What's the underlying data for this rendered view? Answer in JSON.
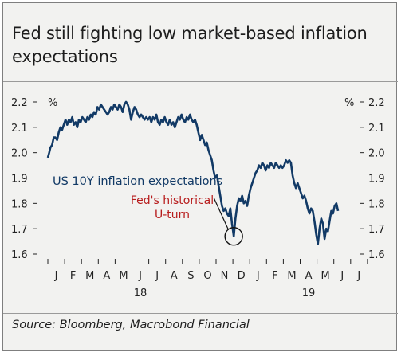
{
  "title": "Fed still fighting low market-based inflation expectations",
  "source": "Source: Bloomberg, Macrobond Financial",
  "chart_data": {
    "type": "line",
    "unit_left": "%",
    "unit_right": "%",
    "ylim": [
      1.6,
      2.2
    ],
    "yticks": [
      "2.2",
      "2.1",
      "2.0",
      "1.9",
      "1.8",
      "1.7",
      "1.6"
    ],
    "months": [
      "J",
      "F",
      "M",
      "A",
      "M",
      "J",
      "J",
      "A",
      "S",
      "O",
      "N",
      "D",
      "J",
      "F",
      "M",
      "A",
      "M",
      "J",
      "J"
    ],
    "years": [
      {
        "label": "18",
        "month_index": 5.5
      },
      {
        "label": "19",
        "month_index": 15.5
      }
    ],
    "series": [
      {
        "name": "US 10Y inflation expectations",
        "color": "#123a66",
        "points": [
          [
            0.0,
            1.98
          ],
          [
            0.08,
            2.0
          ],
          [
            0.15,
            2.02
          ],
          [
            0.25,
            2.03
          ],
          [
            0.35,
            2.06
          ],
          [
            0.45,
            2.06
          ],
          [
            0.55,
            2.05
          ],
          [
            0.65,
            2.08
          ],
          [
            0.75,
            2.1
          ],
          [
            0.85,
            2.09
          ],
          [
            0.95,
            2.11
          ],
          [
            1.05,
            2.13
          ],
          [
            1.15,
            2.11
          ],
          [
            1.25,
            2.13
          ],
          [
            1.35,
            2.12
          ],
          [
            1.45,
            2.14
          ],
          [
            1.55,
            2.11
          ],
          [
            1.65,
            2.12
          ],
          [
            1.75,
            2.1
          ],
          [
            1.85,
            2.13
          ],
          [
            1.95,
            2.12
          ],
          [
            2.05,
            2.14
          ],
          [
            2.15,
            2.13
          ],
          [
            2.25,
            2.12
          ],
          [
            2.35,
            2.14
          ],
          [
            2.45,
            2.13
          ],
          [
            2.55,
            2.15
          ],
          [
            2.65,
            2.14
          ],
          [
            2.75,
            2.16
          ],
          [
            2.85,
            2.15
          ],
          [
            2.95,
            2.18
          ],
          [
            3.05,
            2.17
          ],
          [
            3.15,
            2.19
          ],
          [
            3.25,
            2.18
          ],
          [
            3.35,
            2.17
          ],
          [
            3.45,
            2.16
          ],
          [
            3.55,
            2.15
          ],
          [
            3.65,
            2.16
          ],
          [
            3.75,
            2.18
          ],
          [
            3.85,
            2.17
          ],
          [
            3.95,
            2.19
          ],
          [
            4.05,
            2.18
          ],
          [
            4.15,
            2.17
          ],
          [
            4.25,
            2.19
          ],
          [
            4.35,
            2.18
          ],
          [
            4.45,
            2.16
          ],
          [
            4.55,
            2.19
          ],
          [
            4.65,
            2.2
          ],
          [
            4.75,
            2.19
          ],
          [
            4.85,
            2.17
          ],
          [
            4.95,
            2.13
          ],
          [
            5.05,
            2.16
          ],
          [
            5.15,
            2.18
          ],
          [
            5.25,
            2.17
          ],
          [
            5.35,
            2.15
          ],
          [
            5.45,
            2.14
          ],
          [
            5.55,
            2.15
          ],
          [
            5.65,
            2.14
          ],
          [
            5.75,
            2.13
          ],
          [
            5.85,
            2.14
          ],
          [
            5.95,
            2.13
          ],
          [
            6.05,
            2.14
          ],
          [
            6.15,
            2.12
          ],
          [
            6.25,
            2.14
          ],
          [
            6.35,
            2.13
          ],
          [
            6.45,
            2.15
          ],
          [
            6.55,
            2.12
          ],
          [
            6.65,
            2.11
          ],
          [
            6.75,
            2.13
          ],
          [
            6.85,
            2.12
          ],
          [
            6.95,
            2.14
          ],
          [
            7.05,
            2.12
          ],
          [
            7.15,
            2.11
          ],
          [
            7.25,
            2.13
          ],
          [
            7.35,
            2.11
          ],
          [
            7.45,
            2.12
          ],
          [
            7.55,
            2.1
          ],
          [
            7.65,
            2.12
          ],
          [
            7.75,
            2.14
          ],
          [
            7.85,
            2.13
          ],
          [
            7.95,
            2.15
          ],
          [
            8.05,
            2.13
          ],
          [
            8.15,
            2.12
          ],
          [
            8.25,
            2.14
          ],
          [
            8.35,
            2.13
          ],
          [
            8.45,
            2.15
          ],
          [
            8.55,
            2.13
          ],
          [
            8.65,
            2.12
          ],
          [
            8.75,
            2.13
          ],
          [
            8.85,
            2.11
          ],
          [
            8.95,
            2.08
          ],
          [
            9.05,
            2.05
          ],
          [
            9.15,
            2.07
          ],
          [
            9.25,
            2.05
          ],
          [
            9.35,
            2.03
          ],
          [
            9.45,
            2.04
          ],
          [
            9.55,
            2.01
          ],
          [
            9.65,
            1.99
          ],
          [
            9.75,
            1.97
          ],
          [
            9.85,
            1.93
          ],
          [
            9.95,
            1.9
          ],
          [
            10.05,
            1.91
          ],
          [
            10.15,
            1.87
          ],
          [
            10.25,
            1.83
          ],
          [
            10.35,
            1.79
          ],
          [
            10.45,
            1.77
          ],
          [
            10.55,
            1.78
          ],
          [
            10.65,
            1.76
          ],
          [
            10.75,
            1.75
          ],
          [
            10.85,
            1.78
          ],
          [
            10.95,
            1.72
          ],
          [
            11.05,
            1.67
          ],
          [
            11.15,
            1.74
          ],
          [
            11.25,
            1.79
          ],
          [
            11.35,
            1.82
          ],
          [
            11.45,
            1.81
          ],
          [
            11.55,
            1.83
          ],
          [
            11.65,
            1.8
          ],
          [
            11.75,
            1.81
          ],
          [
            11.85,
            1.79
          ],
          [
            11.95,
            1.83
          ],
          [
            12.05,
            1.86
          ],
          [
            12.15,
            1.88
          ],
          [
            12.25,
            1.9
          ],
          [
            12.35,
            1.92
          ],
          [
            12.45,
            1.93
          ],
          [
            12.55,
            1.95
          ],
          [
            12.65,
            1.94
          ],
          [
            12.75,
            1.96
          ],
          [
            12.85,
            1.95
          ],
          [
            12.95,
            1.93
          ],
          [
            13.05,
            1.95
          ],
          [
            13.15,
            1.94
          ],
          [
            13.25,
            1.96
          ],
          [
            13.35,
            1.95
          ],
          [
            13.45,
            1.94
          ],
          [
            13.55,
            1.96
          ],
          [
            13.65,
            1.95
          ],
          [
            13.75,
            1.94
          ],
          [
            13.85,
            1.95
          ],
          [
            13.95,
            1.94
          ],
          [
            14.05,
            1.95
          ],
          [
            14.15,
            1.97
          ],
          [
            14.25,
            1.96
          ],
          [
            14.35,
            1.97
          ],
          [
            14.45,
            1.96
          ],
          [
            14.55,
            1.91
          ],
          [
            14.65,
            1.88
          ],
          [
            14.75,
            1.86
          ],
          [
            14.85,
            1.88
          ],
          [
            14.95,
            1.86
          ],
          [
            15.05,
            1.84
          ],
          [
            15.15,
            1.82
          ],
          [
            15.25,
            1.83
          ],
          [
            15.35,
            1.81
          ],
          [
            15.45,
            1.78
          ],
          [
            15.55,
            1.76
          ],
          [
            15.65,
            1.78
          ],
          [
            15.75,
            1.77
          ],
          [
            15.85,
            1.73
          ],
          [
            15.95,
            1.68
          ],
          [
            16.05,
            1.64
          ],
          [
            16.15,
            1.7
          ],
          [
            16.25,
            1.74
          ],
          [
            16.35,
            1.72
          ],
          [
            16.45,
            1.66
          ],
          [
            16.55,
            1.7
          ],
          [
            16.65,
            1.69
          ],
          [
            16.75,
            1.73
          ],
          [
            16.85,
            1.77
          ],
          [
            16.95,
            1.76
          ],
          [
            17.05,
            1.79
          ],
          [
            17.15,
            1.8
          ],
          [
            17.25,
            1.77
          ]
        ]
      }
    ],
    "annotations": [
      {
        "text": "US 10Y inflation expectations",
        "color": "#123a66"
      },
      {
        "text_lines": [
          "Fed's historical",
          "U-turn"
        ],
        "color": "#b71c1c",
        "target": [
          11.05,
          1.67
        ]
      }
    ],
    "grid": false,
    "legend": "none"
  }
}
